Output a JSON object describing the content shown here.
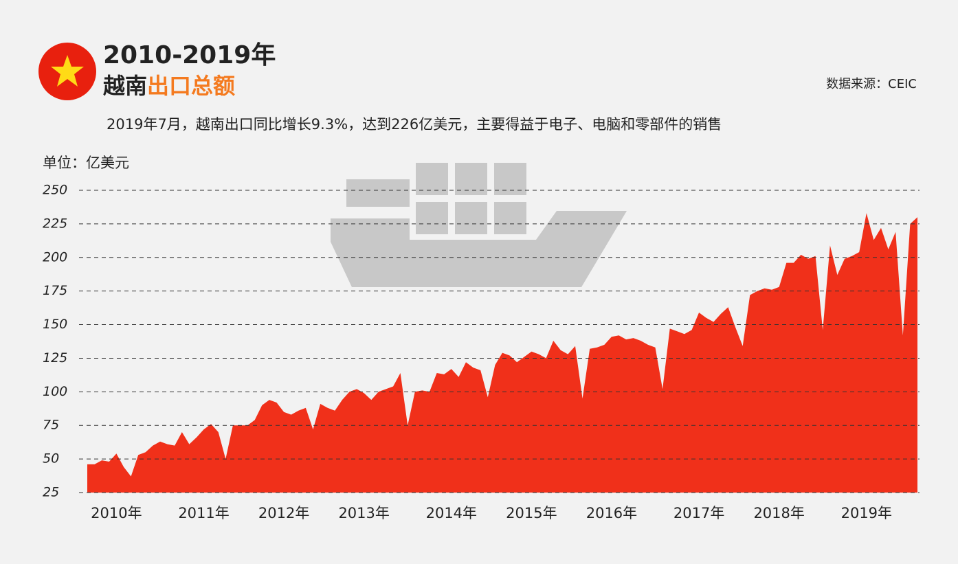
{
  "chart_data": {
    "type": "area",
    "title": "2010-2019年",
    "title_line2": [
      "越南",
      "出口总额"
    ],
    "highlight_color": "#f47a1f",
    "source": "数据来源：CEIC",
    "note": "2019年7月，越南出口同比增长9.3%，达到226亿美元，主要得益于电子、电脑和零部件的销售",
    "unit_label": "单位：亿美元",
    "color": "#f0301a",
    "categories": [
      null,
      null,
      null,
      null,
      "2010年",
      null,
      null,
      null,
      null,
      null,
      null,
      null,
      null,
      null,
      null,
      null,
      "2011年",
      null,
      null,
      null,
      null,
      null,
      null,
      null,
      null,
      null,
      null,
      "2012年",
      null,
      null,
      null,
      null,
      null,
      null,
      null,
      null,
      null,
      null,
      "2013年",
      null,
      null,
      null,
      null,
      null,
      null,
      null,
      null,
      null,
      null,
      null,
      "2014年",
      null,
      null,
      null,
      null,
      null,
      null,
      null,
      null,
      null,
      null,
      "2015年",
      null,
      null,
      null,
      null,
      null,
      null,
      null,
      null,
      null,
      null,
      "2016年",
      null,
      null,
      null,
      null,
      null,
      null,
      null,
      null,
      null,
      null,
      null,
      "2017年",
      null,
      null,
      null,
      null,
      null,
      null,
      null,
      null,
      null,
      null,
      "2018年",
      null,
      null,
      null,
      null,
      null,
      null,
      null,
      null,
      null,
      null,
      null,
      "2019年",
      null,
      null,
      null,
      null,
      null,
      null,
      null
    ],
    "values": [
      46,
      46,
      49,
      48,
      54,
      44,
      37,
      53,
      55,
      60,
      63,
      61,
      60,
      70,
      61,
      66,
      72,
      76,
      70,
      50,
      75,
      75,
      75,
      79,
      90,
      94,
      92,
      85,
      83,
      86,
      88,
      72,
      91,
      88,
      86,
      94,
      100,
      102,
      99,
      94,
      100,
      102,
      104,
      114,
      75,
      100,
      101,
      100,
      114,
      113,
      117,
      111,
      122,
      118,
      116,
      96,
      120,
      129,
      127,
      122,
      126,
      130,
      128,
      125,
      138,
      131,
      128,
      134,
      95,
      132,
      133,
      135,
      141,
      142,
      139,
      140,
      138,
      135,
      133,
      102,
      147,
      145,
      143,
      146,
      159,
      155,
      152,
      158,
      163,
      148,
      134,
      172,
      175,
      177,
      176,
      178,
      196,
      196,
      202,
      199,
      201,
      146,
      209,
      187,
      199,
      201,
      204,
      233,
      213,
      222,
      206,
      219,
      142,
      225,
      230
    ],
    "ylim": [
      25,
      250
    ],
    "yticks": [
      25,
      50,
      75,
      100,
      125,
      150,
      175,
      200,
      225,
      250
    ],
    "grid": true
  }
}
